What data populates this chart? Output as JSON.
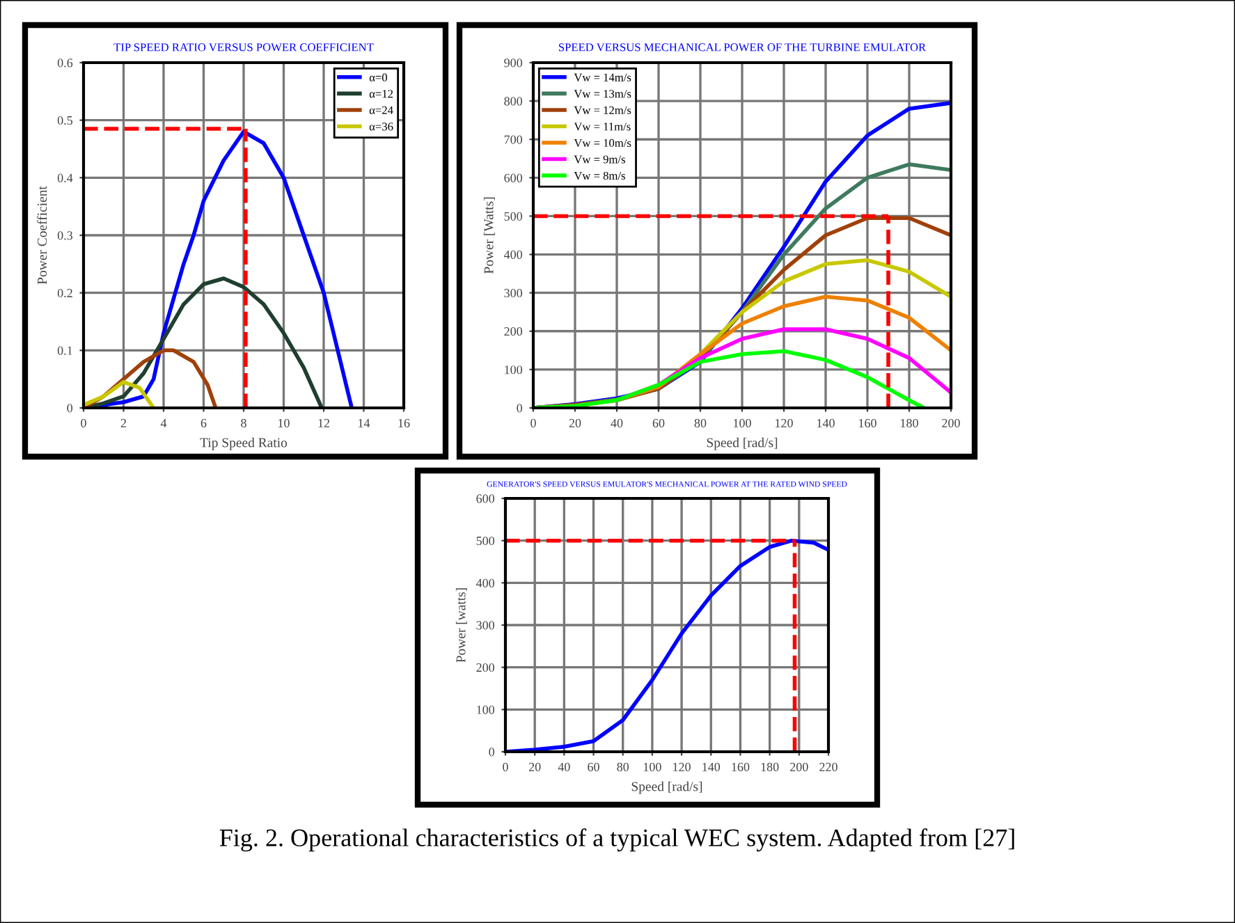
{
  "chart_data": [
    {
      "type": "line",
      "title": "TIP SPEED RATIO VERSUS POWER COEFFICIENT",
      "xlabel": "Tip Speed Ratio",
      "ylabel": "Power Coefficient",
      "xlim": [
        0,
        16
      ],
      "xticks": [
        0,
        2,
        4,
        6,
        8,
        10,
        12,
        14,
        16
      ],
      "ylim": [
        0,
        0.6
      ],
      "yticks": [
        0,
        0.1,
        0.2,
        0.3,
        0.4,
        0.5,
        0.6
      ],
      "grid": true,
      "legend": "top right",
      "series": [
        {
          "name": "α=0",
          "color": "#0000ff",
          "x": [
            0,
            1,
            2,
            3,
            3.5,
            4,
            5,
            5.5,
            6,
            7,
            8,
            9,
            10,
            11,
            12,
            12.7,
            13.4
          ],
          "values": [
            0,
            0.005,
            0.01,
            0.02,
            0.05,
            0.13,
            0.25,
            0.3,
            0.36,
            0.43,
            0.48,
            0.46,
            0.4,
            0.3,
            0.2,
            0.1,
            0
          ]
        },
        {
          "name": "α=12",
          "color": "#1f3f2f",
          "x": [
            0,
            1,
            2,
            3,
            4,
            5,
            6,
            7,
            8,
            9,
            10,
            11,
            11.9
          ],
          "values": [
            0,
            0.008,
            0.02,
            0.06,
            0.12,
            0.18,
            0.215,
            0.225,
            0.21,
            0.18,
            0.13,
            0.07,
            0
          ]
        },
        {
          "name": "α=24",
          "color": "#a0400a",
          "x": [
            0,
            1,
            2,
            3,
            4,
            4.5,
            5.5,
            6.2,
            6.6
          ],
          "values": [
            0,
            0.02,
            0.05,
            0.08,
            0.1,
            0.1,
            0.08,
            0.04,
            0
          ]
        },
        {
          "name": "α=36",
          "color": "#c8c800",
          "x": [
            0,
            1,
            2,
            2.8,
            3.5
          ],
          "values": [
            0.005,
            0.02,
            0.045,
            0.035,
            0
          ]
        }
      ],
      "ref_lines": [
        {
          "axis": "y",
          "value": 0.485,
          "color": "#ff0000",
          "line_style": "dashed"
        },
        {
          "axis": "x",
          "value": 8.1,
          "color": "#ff0000",
          "line_style": "dashed"
        }
      ]
    },
    {
      "type": "line",
      "title": "SPEED VERSUS MECHANICAL POWER OF THE TURBINE EMULATOR",
      "xlabel": "Speed [rad/s]",
      "ylabel": "Power [Watts]",
      "xlim": [
        0,
        200
      ],
      "xticks": [
        0,
        20,
        40,
        60,
        80,
        100,
        120,
        140,
        160,
        180,
        200
      ],
      "ylim": [
        0,
        900
      ],
      "yticks": [
        0,
        100,
        200,
        300,
        400,
        500,
        600,
        700,
        800,
        900
      ],
      "grid": true,
      "legend": "top left",
      "x": [
        0,
        20,
        40,
        60,
        80,
        100,
        120,
        140,
        160,
        180,
        200
      ],
      "series": [
        {
          "name": "Vw = 14m/s",
          "color": "#0000ff",
          "values": [
            0,
            10,
            25,
            50,
            120,
            260,
            420,
            590,
            710,
            780,
            795
          ]
        },
        {
          "name": "Vw = 13m/s",
          "color": "#3f7a5f",
          "values": [
            0,
            8,
            22,
            50,
            125,
            250,
            400,
            520,
            600,
            635,
            620
          ]
        },
        {
          "name": "Vw = 12m/s",
          "color": "#a0400a",
          "values": [
            0,
            8,
            20,
            50,
            130,
            250,
            360,
            450,
            495,
            495,
            450
          ]
        },
        {
          "name": "Vw = 11m/s",
          "color": "#c8c800",
          "values": [
            null,
            null,
            20,
            55,
            140,
            250,
            330,
            375,
            385,
            355,
            290
          ]
        },
        {
          "name": "Vw = 10m/s",
          "color": "#ee8000",
          "values": [
            0,
            5,
            20,
            55,
            140,
            220,
            265,
            290,
            280,
            235,
            150
          ]
        },
        {
          "name": "Vw = 9m/s",
          "color": "#ff00ff",
          "values": [
            null,
            null,
            20,
            60,
            130,
            180,
            205,
            205,
            180,
            130,
            40
          ]
        },
        {
          "name": "Vw = 8m/s",
          "color": "#00ff00",
          "x": [
            0,
            20,
            40,
            60,
            80,
            100,
            120,
            140,
            160,
            180,
            187
          ],
          "values": [
            0,
            5,
            20,
            60,
            120,
            140,
            148,
            125,
            80,
            20,
            0
          ]
        }
      ],
      "ref_lines": [
        {
          "axis": "y",
          "value": 500,
          "color": "#ff0000",
          "line_style": "dashed"
        },
        {
          "axis": "x",
          "value": 170,
          "color": "#ff0000",
          "line_style": "dashed"
        }
      ]
    },
    {
      "type": "line",
      "title": "GENERATOR'S SPEED VERSUS EMULATOR'S MECHANICAL POWER AT THE RATED WIND SPEED",
      "xlabel": "Speed [rad/s]",
      "ylabel": "Power [watts]",
      "xlim": [
        0,
        220
      ],
      "xticks": [
        0,
        20,
        40,
        60,
        80,
        100,
        120,
        140,
        160,
        180,
        200,
        220
      ],
      "ylim": [
        0,
        600
      ],
      "yticks": [
        0,
        100,
        200,
        300,
        400,
        500,
        600
      ],
      "grid": true,
      "x": [
        0,
        20,
        40,
        60,
        80,
        100,
        120,
        140,
        160,
        180,
        195,
        210,
        220
      ],
      "series": [
        {
          "color": "#0000ff",
          "values": [
            0,
            5,
            12,
            25,
            75,
            170,
            280,
            370,
            440,
            485,
            500,
            495,
            478
          ]
        }
      ],
      "ref_lines": [
        {
          "axis": "y",
          "value": 500,
          "color": "#ff0000",
          "line_style": "dashed"
        },
        {
          "axis": "x",
          "value": 197,
          "color": "#ff0000",
          "line_style": "dashed"
        }
      ],
      "annotations": [
        "Fig. 2. Operational characteristics of a typical WEC system. Adapted from [27]"
      ]
    }
  ]
}
